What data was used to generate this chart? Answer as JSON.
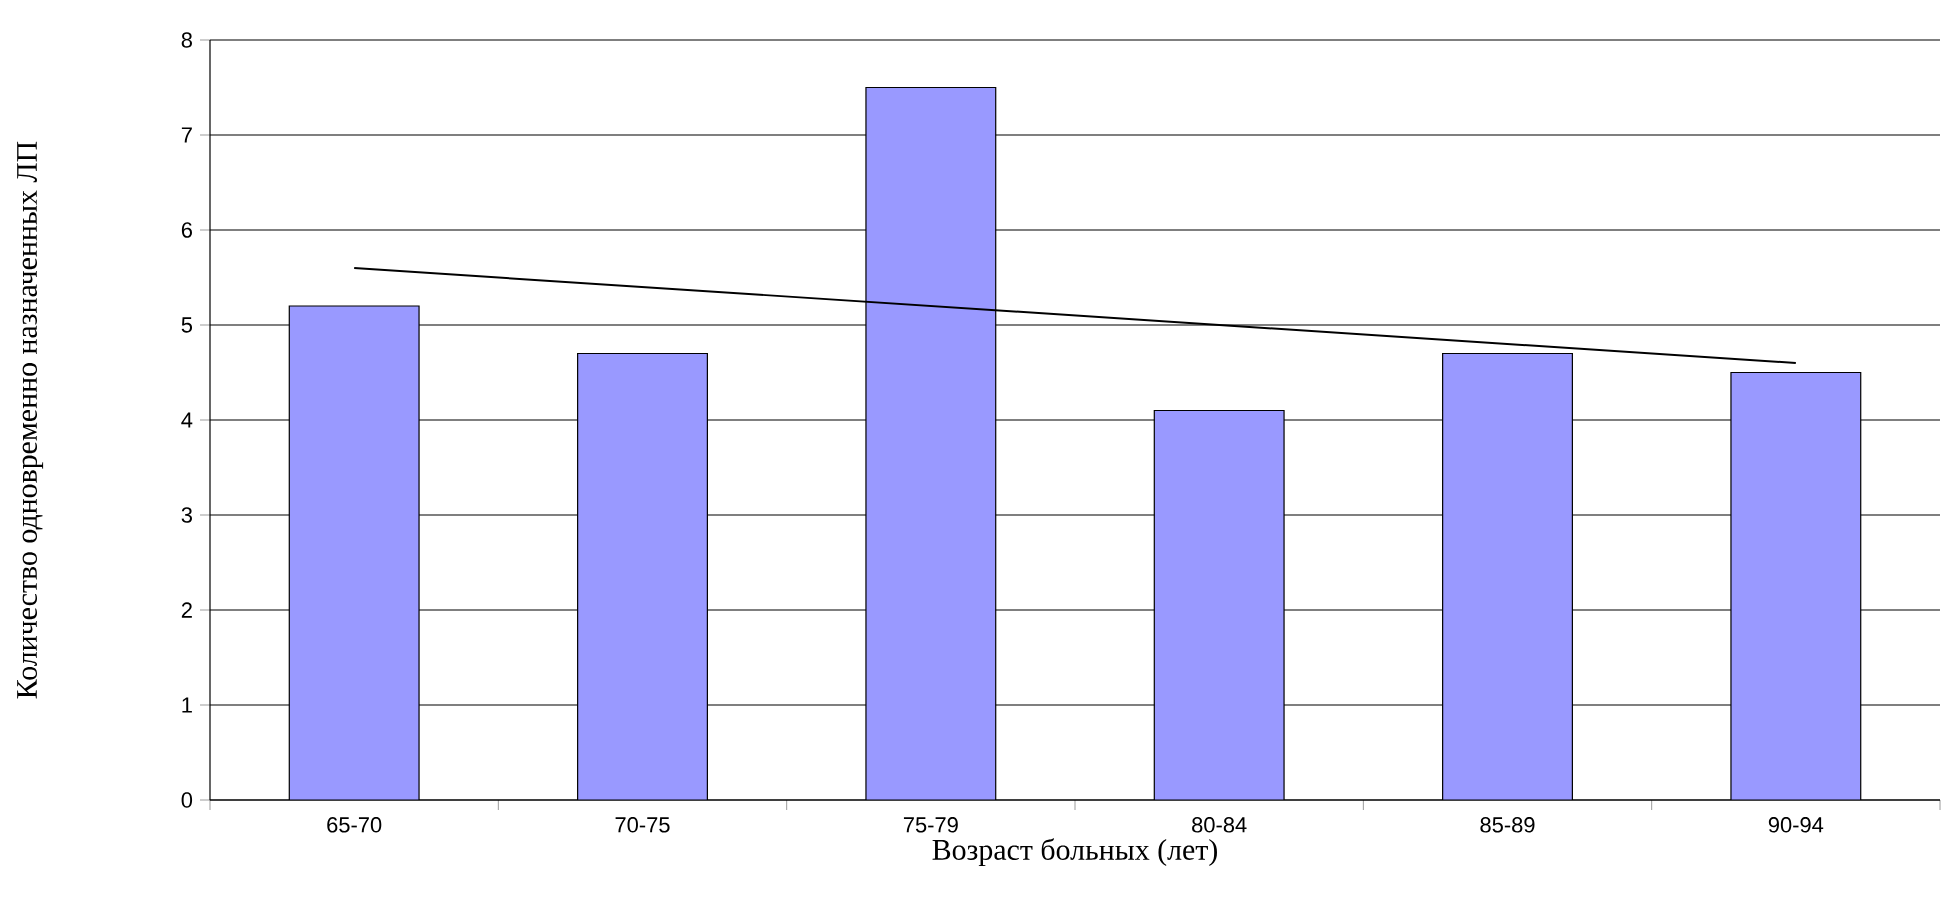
{
  "chart_data": {
    "type": "bar",
    "xlabel": "Возраст больных (лет)",
    "ylabel": "Количество одновременно назначенных ЛП",
    "categories": [
      "65-70",
      "70-75",
      "75-79",
      "80-84",
      "85-89",
      "90-94"
    ],
    "series": [
      {
        "color": "#9999ff",
        "values": [
          5.2,
          4.7,
          7.5,
          4.1,
          4.7,
          4.5
        ]
      },
      {
        "type": "line",
        "color": "#000000",
        "values": [
          5.6,
          5.4,
          5.2,
          5.0,
          4.8,
          4.6
        ]
      }
    ],
    "ylim": [
      0,
      8
    ],
    "yticks": [
      0,
      1,
      2,
      3,
      4,
      5,
      6,
      7,
      8
    ],
    "grid": "y"
  }
}
